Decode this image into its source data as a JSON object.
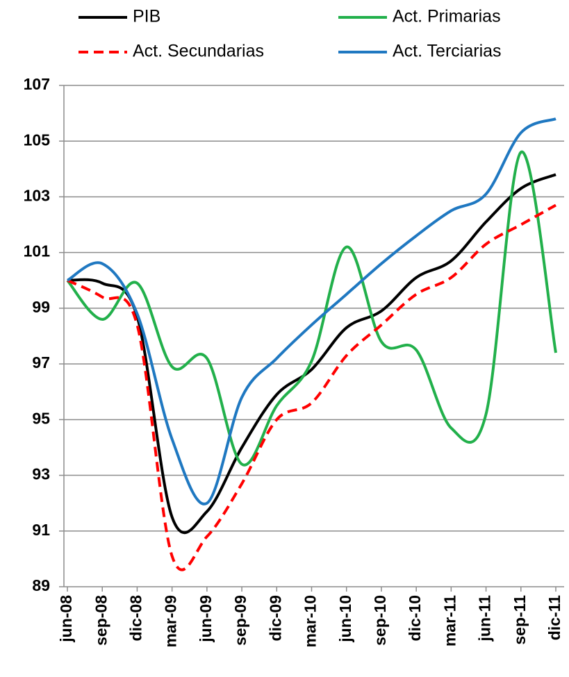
{
  "chart_data": {
    "type": "line",
    "categories": [
      "jun-08",
      "sep-08",
      "dic-08",
      "mar-09",
      "jun-09",
      "sep-09",
      "dic-09",
      "mar-10",
      "jun-10",
      "sep-10",
      "dic-10",
      "mar-11",
      "jun-11",
      "sep-11",
      "dic-11"
    ],
    "series": [
      {
        "name": "PIB",
        "color": "#000000",
        "dashed": false,
        "values": [
          100,
          99.9,
          98.7,
          91.5,
          91.7,
          94.0,
          95.9,
          96.8,
          98.3,
          98.9,
          100.1,
          100.7,
          102.1,
          103.3,
          103.8
        ]
      },
      {
        "name": "Act. Primarias",
        "color": "#22b04b",
        "dashed": false,
        "values": [
          100,
          98.6,
          99.9,
          96.9,
          97.2,
          93.4,
          95.5,
          97.1,
          101.2,
          97.8,
          97.5,
          94.7,
          95.2,
          104.6,
          97.4
        ]
      },
      {
        "name": "Act. Secundarias",
        "color": "#ff0000",
        "dashed": true,
        "values": [
          100,
          99.4,
          98.4,
          90.1,
          90.8,
          92.7,
          95.0,
          95.6,
          97.3,
          98.4,
          99.5,
          100.1,
          101.3,
          102.0,
          102.7
        ]
      },
      {
        "name": "Act. Terciarias",
        "color": "#1f78c1",
        "dashed": false,
        "values": [
          100,
          100.6,
          98.8,
          94.3,
          92.0,
          95.8,
          97.2,
          98.4,
          99.5,
          100.6,
          101.6,
          102.5,
          103.1,
          105.3,
          105.8
        ]
      }
    ],
    "ylim": [
      89,
      107
    ],
    "yticks": [
      89,
      91,
      93,
      95,
      97,
      99,
      101,
      103,
      105,
      107
    ],
    "grid": true
  }
}
